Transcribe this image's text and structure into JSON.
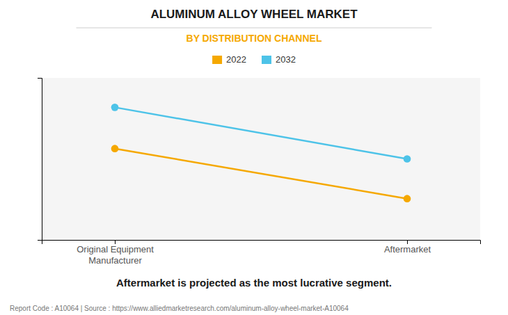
{
  "chart_data": {
    "type": "line",
    "title": "ALUMINUM ALLOY WHEEL MARKET",
    "subtitle": "BY DISTRIBUTION CHANNEL",
    "categories": [
      "Original Equipment\nManufacturer",
      "Aftermarket"
    ],
    "series": [
      {
        "name": "2022",
        "color": "#F5A800",
        "values": [
          0.62,
          0.28
        ],
        "marker": "circle"
      },
      {
        "name": "2032",
        "color": "#4DC3E8",
        "values": [
          0.9,
          0.55
        ],
        "marker": "circle"
      }
    ],
    "ylim": [
      0.0,
      1.1
    ],
    "yticks": [],
    "grid": false,
    "legend": "top",
    "tick_labels": "x",
    "annotations": [
      "Aftermarket is projected as the most lucrative segment.",
      "Report Code : A10064  |  Source : https://www.alliedmarketresearch.com/aluminum-alloy-wheel-market-A10064"
    ]
  }
}
